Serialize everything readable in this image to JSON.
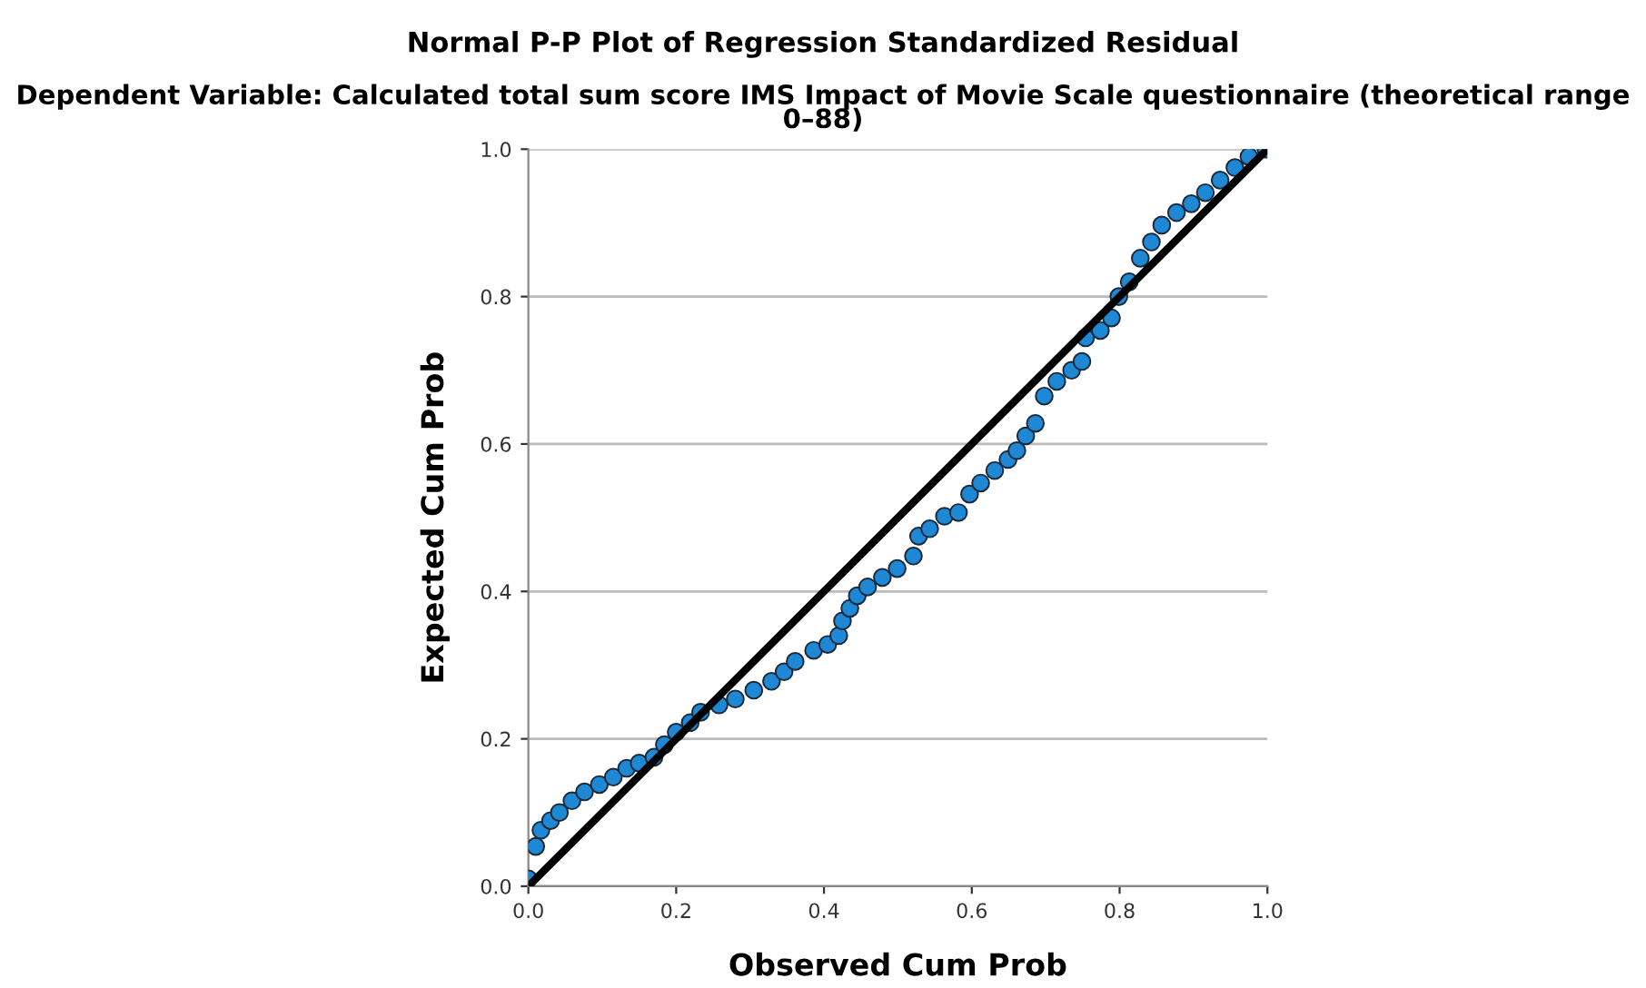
{
  "chart_data": {
    "type": "scatter",
    "title": "Normal P-P Plot of Regression Standardized Residual",
    "subtitle": "Dependent Variable: Calculated total sum score IMS Impact of Movie Scale questionnaire (theoretical range 0–88)",
    "xlabel": "Observed Cum Prob",
    "ylabel": "Expected Cum Prob",
    "series": [
      {
        "marker": "circle",
        "color": "#1f88d4",
        "x": [
          0.0,
          0.01,
          0.017,
          0.03,
          0.042,
          0.059,
          0.076,
          0.096,
          0.115,
          0.133,
          0.15,
          0.17,
          0.184,
          0.2,
          0.219,
          0.233,
          0.258,
          0.28,
          0.305,
          0.329,
          0.346,
          0.361,
          0.386,
          0.405,
          0.42,
          0.425,
          0.435,
          0.445,
          0.459,
          0.479,
          0.499,
          0.521,
          0.528,
          0.543,
          0.563,
          0.582,
          0.597,
          0.612,
          0.631,
          0.649,
          0.661,
          0.673,
          0.686,
          0.698,
          0.715,
          0.735,
          0.749,
          0.754,
          0.774,
          0.789,
          0.799,
          0.813,
          0.828,
          0.843,
          0.857,
          0.877,
          0.897,
          0.916,
          0.936,
          0.956,
          0.975,
          0.998
        ],
        "values": [
          0.01,
          0.054,
          0.076,
          0.089,
          0.1,
          0.116,
          0.128,
          0.138,
          0.148,
          0.16,
          0.167,
          0.175,
          0.192,
          0.209,
          0.222,
          0.236,
          0.246,
          0.254,
          0.266,
          0.278,
          0.291,
          0.305,
          0.32,
          0.328,
          0.34,
          0.36,
          0.377,
          0.394,
          0.406,
          0.419,
          0.431,
          0.448,
          0.475,
          0.485,
          0.502,
          0.507,
          0.532,
          0.547,
          0.564,
          0.579,
          0.591,
          0.611,
          0.628,
          0.665,
          0.685,
          0.7,
          0.712,
          0.744,
          0.754,
          0.771,
          0.8,
          0.82,
          0.852,
          0.874,
          0.897,
          0.914,
          0.926,
          0.941,
          0.958,
          0.975,
          0.99,
          1.0
        ]
      },
      {
        "type": "line",
        "color": "#000000",
        "x": [
          0,
          1
        ],
        "values": [
          0,
          1
        ]
      }
    ],
    "xlim": [
      0,
      1
    ],
    "ylim": [
      0,
      1
    ],
    "xticks": [
      {
        "value": 0,
        "label": "0.0"
      },
      0.2,
      0.4,
      0.6,
      0.8,
      {
        "value": 1,
        "label": "1.0"
      }
    ],
    "yticks": [
      {
        "value": 0,
        "label": "0.0"
      },
      0.2,
      0.4,
      0.6,
      0.8,
      {
        "value": 1,
        "label": "1.0"
      }
    ],
    "grid": "y"
  }
}
